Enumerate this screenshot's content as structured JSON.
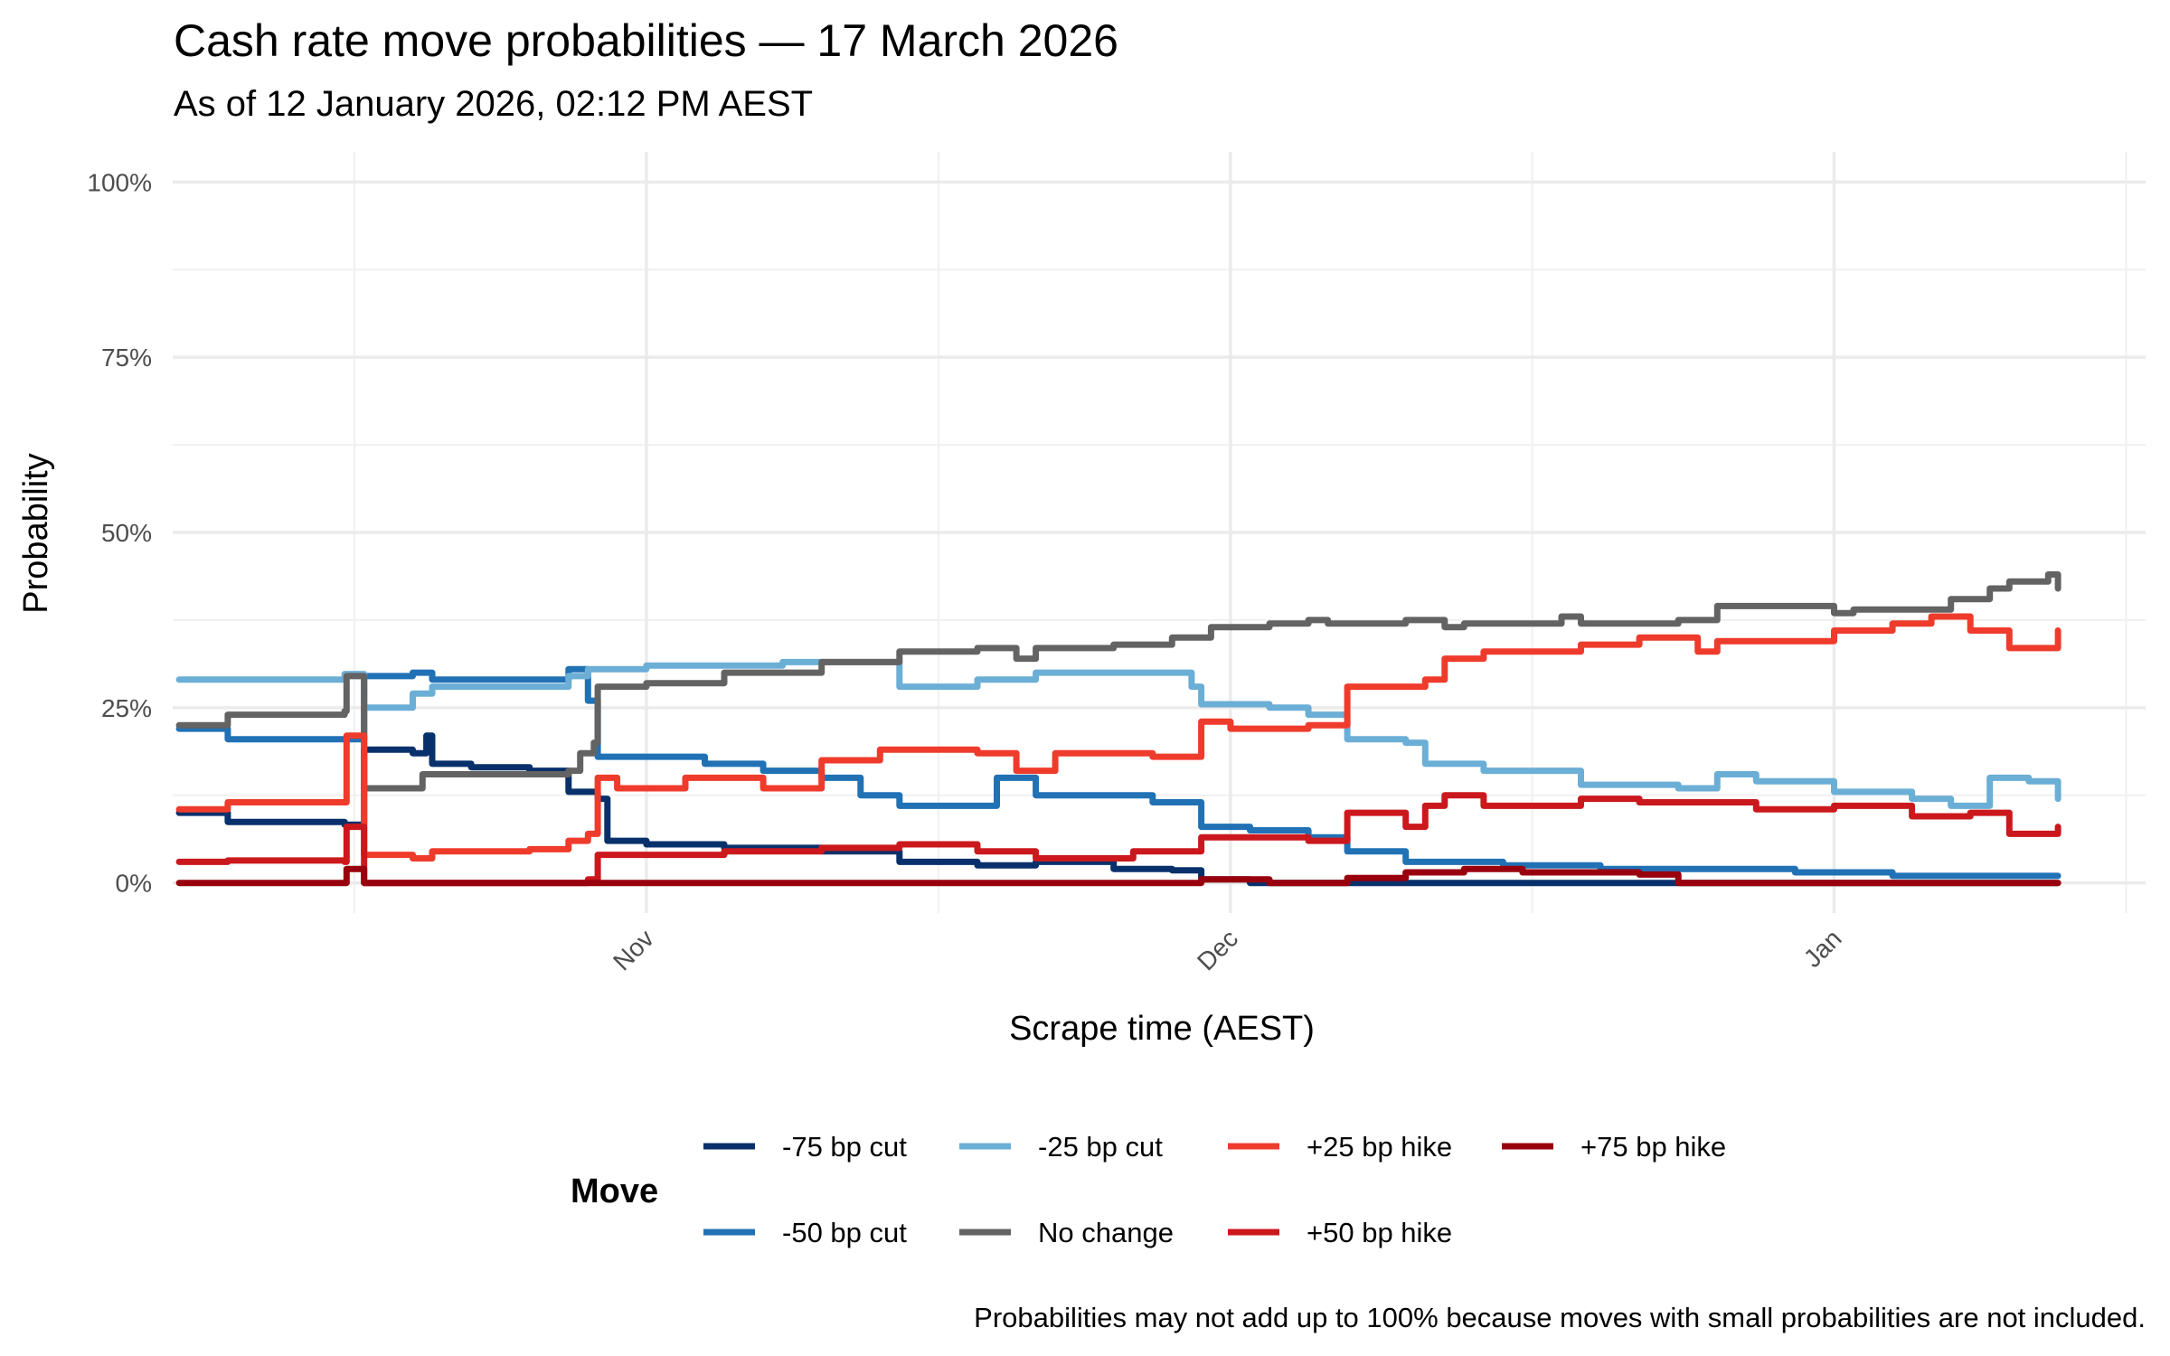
{
  "chart_data": {
    "type": "line",
    "title": "Cash rate move probabilities — 17 March 2026",
    "subtitle": "As of 12 January 2026, 02:12 PM AEST",
    "xlabel": "Scrape time (AEST)",
    "ylabel": "Probability",
    "x_units": "days since 1 October 2025",
    "xlim": [
      6.67,
      108
    ],
    "ylim": [
      -4.3,
      104.3
    ],
    "x_ticks": [
      {
        "value": 31,
        "label": "Nov"
      },
      {
        "value": 61,
        "label": "Dec"
      },
      {
        "value": 92,
        "label": "Jan"
      }
    ],
    "x_minor": [
      16,
      46,
      76.5,
      107
    ],
    "y_ticks": [
      {
        "value": 0,
        "label": "0%"
      },
      {
        "value": 25,
        "label": "25%"
      },
      {
        "value": 50,
        "label": "50%"
      },
      {
        "value": 75,
        "label": "75%"
      },
      {
        "value": 100,
        "label": "100%"
      }
    ],
    "y_minor": [
      12.5,
      37.5,
      62.5,
      87.5
    ],
    "grid": true,
    "legend_title": "Move",
    "legend_position": "bottom",
    "caption": "Probabilities may not add up to 100% because moves with small probabilities are not included.",
    "series": [
      {
        "name": "-75 bp cut",
        "color": "#08306b",
        "points": [
          [
            7,
            10
          ],
          [
            9.5,
            8.7
          ],
          [
            15.5,
            8.3
          ],
          [
            16.5,
            19
          ],
          [
            19,
            18.5
          ],
          [
            19.7,
            21
          ],
          [
            20,
            17
          ],
          [
            22,
            16.5
          ],
          [
            25,
            16
          ],
          [
            27,
            13
          ],
          [
            28.5,
            12
          ],
          [
            29,
            6
          ],
          [
            31,
            5.5
          ],
          [
            35,
            5
          ],
          [
            40,
            4.5
          ],
          [
            44,
            3
          ],
          [
            48,
            2.5
          ],
          [
            51,
            3
          ],
          [
            55,
            2
          ],
          [
            58,
            1.8
          ],
          [
            59.5,
            0.5
          ],
          [
            62,
            0
          ],
          [
            103.5,
            0
          ]
        ]
      },
      {
        "name": "-50 bp cut",
        "color": "#2171b5",
        "points": [
          [
            7,
            22
          ],
          [
            9.5,
            20.5
          ],
          [
            15.5,
            20.5
          ],
          [
            16.5,
            29.5
          ],
          [
            19,
            30
          ],
          [
            20,
            29
          ],
          [
            27,
            30.5
          ],
          [
            28,
            26
          ],
          [
            28.5,
            18
          ],
          [
            31,
            18
          ],
          [
            34,
            17
          ],
          [
            37,
            16
          ],
          [
            40,
            15
          ],
          [
            42,
            12.5
          ],
          [
            44,
            11
          ],
          [
            49,
            15
          ],
          [
            51,
            12.5
          ],
          [
            57,
            11.5
          ],
          [
            59.5,
            8
          ],
          [
            62,
            7.5
          ],
          [
            65,
            6.5
          ],
          [
            67,
            4.5
          ],
          [
            70,
            3
          ],
          [
            75,
            2.5
          ],
          [
            80,
            2
          ],
          [
            90,
            1.5
          ],
          [
            95,
            1
          ],
          [
            103.5,
            1
          ]
        ]
      },
      {
        "name": "-25 bp cut",
        "color": "#6baed6",
        "points": [
          [
            7,
            29
          ],
          [
            15.5,
            29.8
          ],
          [
            16.5,
            25
          ],
          [
            19,
            27
          ],
          [
            20,
            28
          ],
          [
            27,
            29.5
          ],
          [
            28,
            30.5
          ],
          [
            31,
            31
          ],
          [
            38,
            31.5
          ],
          [
            44,
            28
          ],
          [
            48,
            29
          ],
          [
            51,
            30
          ],
          [
            56,
            30
          ],
          [
            59,
            28
          ],
          [
            59.5,
            25.5
          ],
          [
            63,
            25
          ],
          [
            65,
            24
          ],
          [
            67,
            20.5
          ],
          [
            70,
            20
          ],
          [
            71,
            17
          ],
          [
            74,
            16
          ],
          [
            79,
            14
          ],
          [
            84,
            13.5
          ],
          [
            86,
            15.5
          ],
          [
            88,
            14.5
          ],
          [
            92,
            13
          ],
          [
            96,
            12
          ],
          [
            98,
            11
          ],
          [
            100,
            15
          ],
          [
            102,
            14.5
          ],
          [
            103.5,
            12
          ]
        ]
      },
      {
        "name": "No change",
        "color": "#636363",
        "points": [
          [
            7,
            22.5
          ],
          [
            9.5,
            24
          ],
          [
            15.5,
            24.5
          ],
          [
            15.6,
            29.5
          ],
          [
            16.5,
            13.5
          ],
          [
            19.5,
            15.5
          ],
          [
            27,
            16
          ],
          [
            27.6,
            18.5
          ],
          [
            28.3,
            20
          ],
          [
            28.5,
            28
          ],
          [
            31,
            28.5
          ],
          [
            35,
            30
          ],
          [
            40,
            31.5
          ],
          [
            44,
            33
          ],
          [
            48,
            33.5
          ],
          [
            50,
            32
          ],
          [
            51,
            33.5
          ],
          [
            55,
            34
          ],
          [
            58,
            35
          ],
          [
            60,
            36.5
          ],
          [
            63,
            37
          ],
          [
            65,
            37.5
          ],
          [
            66,
            37
          ],
          [
            70,
            37.5
          ],
          [
            72,
            36.5
          ],
          [
            73,
            37
          ],
          [
            78,
            38
          ],
          [
            79,
            37
          ],
          [
            84,
            37.5
          ],
          [
            86,
            39.5
          ],
          [
            90,
            39.5
          ],
          [
            92,
            38.5
          ],
          [
            93,
            39
          ],
          [
            98,
            40.5
          ],
          [
            100,
            42
          ],
          [
            101,
            43
          ],
          [
            103,
            44
          ],
          [
            103.5,
            42
          ]
        ]
      },
      {
        "name": "+25 bp hike",
        "color": "#ef3b2c",
        "points": [
          [
            7,
            10.5
          ],
          [
            9.5,
            11.5
          ],
          [
            15.5,
            11.5
          ],
          [
            15.6,
            21
          ],
          [
            16.5,
            4
          ],
          [
            19,
            3.5
          ],
          [
            20,
            4.5
          ],
          [
            25,
            4.8
          ],
          [
            27,
            6
          ],
          [
            28,
            7
          ],
          [
            28.5,
            15
          ],
          [
            29.5,
            13.5
          ],
          [
            33,
            15
          ],
          [
            37,
            13.5
          ],
          [
            40,
            17.5
          ],
          [
            43,
            19
          ],
          [
            48,
            18.5
          ],
          [
            50,
            16
          ],
          [
            52,
            18.5
          ],
          [
            57,
            18
          ],
          [
            59.5,
            23
          ],
          [
            61,
            22
          ],
          [
            65,
            22.5
          ],
          [
            67,
            28
          ],
          [
            71,
            29
          ],
          [
            72,
            32
          ],
          [
            74,
            33
          ],
          [
            79,
            34
          ],
          [
            82,
            35
          ],
          [
            85,
            33
          ],
          [
            86,
            34.5
          ],
          [
            92,
            36
          ],
          [
            95,
            37
          ],
          [
            97,
            38
          ],
          [
            99,
            36
          ],
          [
            101,
            33.5
          ],
          [
            103.5,
            36
          ]
        ]
      },
      {
        "name": "+50 bp hike",
        "color": "#cb181d",
        "points": [
          [
            7,
            3
          ],
          [
            9.5,
            3.2
          ],
          [
            15.5,
            3
          ],
          [
            15.6,
            8
          ],
          [
            16.5,
            0
          ],
          [
            28,
            0.5
          ],
          [
            28.5,
            4
          ],
          [
            31,
            4
          ],
          [
            35,
            4.5
          ],
          [
            40,
            5
          ],
          [
            44,
            5.5
          ],
          [
            48,
            4.5
          ],
          [
            51,
            3.5
          ],
          [
            56,
            4.5
          ],
          [
            59.5,
            6.5
          ],
          [
            62,
            6.5
          ],
          [
            65,
            6
          ],
          [
            67,
            10
          ],
          [
            70,
            8
          ],
          [
            71,
            11
          ],
          [
            72,
            12.5
          ],
          [
            74,
            11
          ],
          [
            79,
            12
          ],
          [
            82,
            11.5
          ],
          [
            88,
            10.5
          ],
          [
            92,
            11
          ],
          [
            96,
            9.5
          ],
          [
            99,
            10
          ],
          [
            101,
            7
          ],
          [
            103.5,
            8
          ]
        ]
      },
      {
        "name": "+75 bp hike",
        "color": "#99000d",
        "points": [
          [
            7,
            0
          ],
          [
            15.5,
            0
          ],
          [
            15.6,
            2
          ],
          [
            16.5,
            0
          ],
          [
            58,
            0
          ],
          [
            59.5,
            0.5
          ],
          [
            63,
            0
          ],
          [
            67,
            0.7
          ],
          [
            70,
            1.5
          ],
          [
            73,
            2
          ],
          [
            76,
            1.5
          ],
          [
            82,
            1.2
          ],
          [
            84,
            0
          ],
          [
            103.5,
            0
          ]
        ]
      }
    ]
  }
}
